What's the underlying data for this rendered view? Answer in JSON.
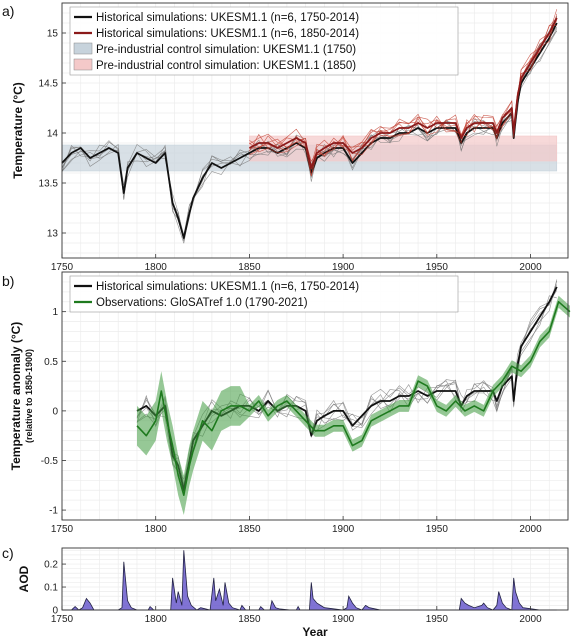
{
  "chart_data": [
    {
      "type": "line",
      "panel_label": "a)",
      "ylabel": "Temperature (°C)",
      "xlim": [
        1750,
        2020
      ],
      "ylim": [
        12.75,
        15.3
      ],
      "yticks": [
        13,
        13.5,
        14,
        14.5,
        15
      ],
      "xticks": [
        1750,
        1800,
        1850,
        1900,
        1950,
        2000
      ],
      "grid": true,
      "legend_position": "top",
      "legend": [
        {
          "label": "Historical simulations: UKESM1.1 (n=6, 1750-2014)",
          "kind": "line",
          "color": "#111111"
        },
        {
          "label": "Historical simulations: UKESM1.1 (n=6, 1850-2014)",
          "kind": "line",
          "color": "#8b1a1a"
        },
        {
          "label": "Pre-industrial control simulation: UKESM1.1 (1750)",
          "kind": "band",
          "color": "#c7d3dc"
        },
        {
          "label": "Pre-industrial control simulation: UKESM1.1 (1850)",
          "kind": "band",
          "color": "#f4c9c9"
        }
      ],
      "bands": [
        {
          "name": "piControl 1750",
          "x": [
            1750,
            2014
          ],
          "y": [
            13.62,
            13.88
          ],
          "color": "#c7d3dc"
        },
        {
          "name": "piControl 1850",
          "x": [
            1850,
            2014
          ],
          "y": [
            13.72,
            13.97
          ],
          "color": "#f4c9c9"
        }
      ],
      "series": [
        {
          "name": "Historical simulations: UKESM1.1 (n=6, 1750-2014)",
          "color": "#111111",
          "x": [
            1750,
            1755,
            1760,
            1765,
            1770,
            1775,
            1780,
            1783,
            1785,
            1790,
            1795,
            1800,
            1805,
            1809,
            1812,
            1815,
            1818,
            1820,
            1825,
            1830,
            1835,
            1840,
            1845,
            1850,
            1855,
            1860,
            1865,
            1870,
            1875,
            1880,
            1883,
            1886,
            1890,
            1895,
            1900,
            1905,
            1910,
            1915,
            1920,
            1925,
            1930,
            1935,
            1940,
            1945,
            1950,
            1955,
            1960,
            1963,
            1966,
            1970,
            1975,
            1980,
            1982,
            1985,
            1990,
            1991,
            1993,
            1995,
            2000,
            2005,
            2010,
            2014
          ],
          "y": [
            13.7,
            13.8,
            13.85,
            13.75,
            13.8,
            13.85,
            13.8,
            13.4,
            13.65,
            13.8,
            13.75,
            13.7,
            13.8,
            13.3,
            13.15,
            12.95,
            13.2,
            13.35,
            13.55,
            13.7,
            13.65,
            13.7,
            13.75,
            13.8,
            13.85,
            13.85,
            13.8,
            13.85,
            13.9,
            13.85,
            13.6,
            13.75,
            13.8,
            13.85,
            13.85,
            13.7,
            13.8,
            13.9,
            13.95,
            13.95,
            14.0,
            14.0,
            14.05,
            14.0,
            14.05,
            14.05,
            14.05,
            13.9,
            14.0,
            14.05,
            14.05,
            14.05,
            13.95,
            14.1,
            14.2,
            13.95,
            14.3,
            14.5,
            14.65,
            14.8,
            14.95,
            15.1
          ]
        },
        {
          "name": "Historical simulations: UKESM1.1 (n=6, 1850-2014)",
          "color": "#8b1a1a",
          "x": [
            1850,
            1855,
            1860,
            1865,
            1870,
            1875,
            1880,
            1883,
            1886,
            1890,
            1895,
            1900,
            1905,
            1910,
            1915,
            1920,
            1925,
            1930,
            1935,
            1940,
            1945,
            1950,
            1955,
            1960,
            1963,
            1966,
            1970,
            1975,
            1980,
            1982,
            1985,
            1990,
            1991,
            1993,
            1995,
            2000,
            2005,
            2010,
            2014
          ],
          "y": [
            13.85,
            13.9,
            13.9,
            13.85,
            13.9,
            13.95,
            13.9,
            13.65,
            13.8,
            13.85,
            13.9,
            13.9,
            13.8,
            13.85,
            13.95,
            14.0,
            14.0,
            14.05,
            14.05,
            14.1,
            14.05,
            14.1,
            14.1,
            14.1,
            13.95,
            14.05,
            14.1,
            14.1,
            14.1,
            14.0,
            14.15,
            14.25,
            14.0,
            14.35,
            14.55,
            14.7,
            14.85,
            15.0,
            15.15
          ]
        }
      ]
    },
    {
      "type": "line",
      "panel_label": "b)",
      "ylabel": "Temperature anomaly (°C)",
      "ylabel_sub": "(relative to 1850-1900)",
      "xlim": [
        1750,
        2020
      ],
      "ylim": [
        -1.1,
        1.4
      ],
      "yticks": [
        -1,
        -0.5,
        0,
        0.5,
        1
      ],
      "xticks": [
        1750,
        1800,
        1850,
        1900,
        1950,
        2000
      ],
      "grid": true,
      "legend_position": "top",
      "legend": [
        {
          "label": "Historical simulations: UKESM1.1 (n=6, 1750-2014)",
          "kind": "line",
          "color": "#111111"
        },
        {
          "label": "Observations: GloSATref 1.0 (1790-2021)",
          "kind": "line",
          "color": "#1e7a1e"
        }
      ],
      "series": [
        {
          "name": "Historical simulations: UKESM1.1 (n=6, 1750-2014)",
          "color": "#111111",
          "x": [
            1790,
            1795,
            1800,
            1805,
            1809,
            1812,
            1815,
            1818,
            1820,
            1825,
            1830,
            1835,
            1840,
            1845,
            1850,
            1855,
            1860,
            1865,
            1870,
            1875,
            1880,
            1883,
            1886,
            1890,
            1895,
            1900,
            1905,
            1910,
            1915,
            1920,
            1925,
            1930,
            1935,
            1940,
            1945,
            1950,
            1955,
            1960,
            1963,
            1966,
            1970,
            1975,
            1980,
            1982,
            1985,
            1990,
            1991,
            1993,
            1995,
            2000,
            2005,
            2010,
            2014
          ],
          "y": [
            0.0,
            0.05,
            -0.05,
            0.05,
            -0.45,
            -0.55,
            -0.8,
            -0.5,
            -0.3,
            -0.15,
            0.0,
            -0.05,
            0.0,
            0.05,
            0.05,
            0.0,
            0.1,
            0.0,
            0.05,
            0.05,
            0.0,
            -0.25,
            -0.1,
            -0.05,
            0.0,
            0.0,
            -0.15,
            -0.05,
            0.05,
            0.1,
            0.1,
            0.15,
            0.15,
            0.2,
            0.15,
            0.2,
            0.2,
            0.2,
            0.05,
            0.15,
            0.2,
            0.2,
            0.2,
            0.1,
            0.25,
            0.35,
            0.1,
            0.45,
            0.65,
            0.8,
            0.95,
            1.1,
            1.25
          ]
        },
        {
          "name": "Observations: GloSATref 1.0 (1790-2021)",
          "color": "#1e7a1e",
          "x": [
            1790,
            1795,
            1800,
            1803,
            1806,
            1809,
            1812,
            1815,
            1818,
            1820,
            1825,
            1830,
            1835,
            1840,
            1845,
            1850,
            1855,
            1860,
            1865,
            1870,
            1875,
            1880,
            1885,
            1890,
            1895,
            1900,
            1905,
            1910,
            1915,
            1920,
            1925,
            1930,
            1935,
            1940,
            1945,
            1950,
            1955,
            1960,
            1965,
            1970,
            1975,
            1980,
            1985,
            1990,
            1995,
            2000,
            2005,
            2010,
            2015,
            2021
          ],
          "y": [
            -0.15,
            -0.25,
            -0.1,
            0.2,
            -0.1,
            -0.35,
            -0.65,
            -0.85,
            -0.55,
            -0.4,
            -0.1,
            -0.2,
            0.0,
            0.05,
            0.05,
            0.0,
            0.1,
            -0.05,
            0.05,
            0.1,
            0.0,
            -0.1,
            -0.2,
            -0.2,
            -0.15,
            -0.15,
            -0.35,
            -0.3,
            -0.1,
            -0.05,
            0.0,
            0.05,
            0.05,
            0.3,
            0.25,
            0.05,
            0.0,
            0.1,
            0.0,
            0.05,
            0.0,
            0.2,
            0.3,
            0.45,
            0.4,
            0.5,
            0.7,
            0.8,
            1.1,
            1.0
          ]
        }
      ]
    },
    {
      "type": "area",
      "panel_label": "c)",
      "ylabel": "AOD",
      "xlabel": "Year",
      "xlim": [
        1750,
        2020
      ],
      "ylim": [
        0,
        0.27
      ],
      "yticks": [
        0,
        0.1,
        0.2
      ],
      "xticks": [
        1750,
        1800,
        1850,
        1900,
        1950,
        2000
      ],
      "grid": true,
      "color": "#6a5acd",
      "x": [
        1750,
        1755,
        1757,
        1759,
        1761,
        1763,
        1765,
        1767,
        1769,
        1780,
        1782,
        1783,
        1785,
        1787,
        1790,
        1796,
        1797,
        1799,
        1808,
        1809,
        1811,
        1812,
        1814,
        1815,
        1817,
        1819,
        1822,
        1824,
        1829,
        1831,
        1832,
        1834,
        1836,
        1837,
        1839,
        1841,
        1845,
        1846,
        1848,
        1855,
        1856,
        1858,
        1861,
        1862,
        1864,
        1866,
        1872,
        1875,
        1876,
        1877,
        1879,
        1882,
        1883,
        1884,
        1886,
        1888,
        1890,
        1900,
        1902,
        1903,
        1905,
        1907,
        1910,
        1912,
        1914,
        1920,
        1925,
        1950,
        1955,
        1962,
        1963,
        1965,
        1967,
        1970,
        1974,
        1975,
        1977,
        1980,
        1982,
        1983,
        1985,
        1987,
        1990,
        1991,
        1992,
        1994,
        1996,
        2005,
        2010,
        2014
      ],
      "y": [
        0,
        0,
        0.015,
        0,
        0.01,
        0.05,
        0.03,
        0,
        0,
        0,
        0.01,
        0.21,
        0.04,
        0.01,
        0,
        0,
        0.015,
        0,
        0,
        0.14,
        0.03,
        0.08,
        0.02,
        0.26,
        0.06,
        0.02,
        0,
        0.01,
        0,
        0.14,
        0.04,
        0.09,
        0.02,
        0.12,
        0.03,
        0.01,
        0,
        0.02,
        0,
        0,
        0.015,
        0,
        0,
        0.04,
        0.01,
        0.005,
        0,
        0,
        0.015,
        0,
        0,
        0,
        0.12,
        0.05,
        0.03,
        0.02,
        0.01,
        0,
        0.01,
        0.06,
        0.03,
        0.01,
        0,
        0.02,
        0.01,
        0,
        0,
        0,
        0,
        0,
        0.05,
        0.03,
        0.02,
        0.01,
        0.02,
        0.03,
        0.01,
        0,
        0.02,
        0.08,
        0.03,
        0.01,
        0,
        0.14,
        0.08,
        0.03,
        0.01,
        0,
        0,
        0
      ]
    }
  ]
}
